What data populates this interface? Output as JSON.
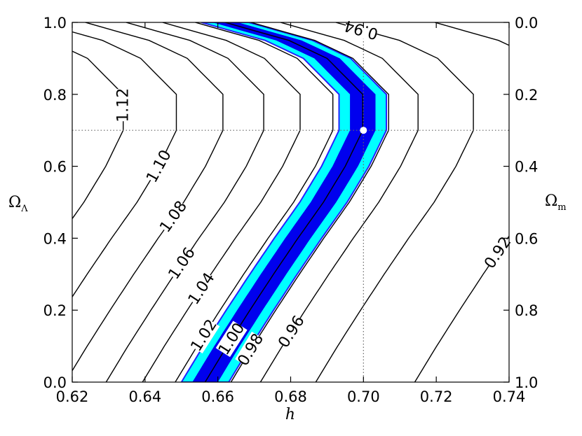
{
  "chart_data": {
    "type": "contour",
    "title": "",
    "xlabel": "h",
    "ylabel_left": "Ω",
    "ylabel_left_sub": "Λ",
    "ylabel_right": "Ω",
    "ylabel_right_sub": "m",
    "xlim": [
      0.62,
      0.74
    ],
    "ylim_left": [
      0.0,
      1.0
    ],
    "ylim_right": [
      1.0,
      0.0
    ],
    "x_ticks": [
      "0.62",
      "0.64",
      "0.66",
      "0.68",
      "0.70",
      "0.72",
      "0.74"
    ],
    "y_ticks_left": [
      "0.0",
      "0.2",
      "0.4",
      "0.6",
      "0.8",
      "1.0"
    ],
    "y_ticks_right": [
      "1.0",
      "0.8",
      "0.6",
      "0.4",
      "0.2",
      "0.0"
    ],
    "grid": false,
    "reference_point": {
      "h": 0.7,
      "omega_lambda": 0.7,
      "color": "#ffffff"
    },
    "reference_lines": {
      "h": 0.7,
      "omega_lambda": 0.7,
      "style": "dotted"
    },
    "confidence_bands": [
      {
        "level": "inner",
        "color": "#0000ee",
        "h_halfwidth": 0.0035
      },
      {
        "level": "outer",
        "color": "#00ffff",
        "h_halfwidth": 0.0065
      }
    ],
    "contour_levels": [
      "0.92",
      "0.94",
      "0.96",
      "0.98",
      "1.00",
      "1.02",
      "1.04",
      "1.06",
      "1.08",
      "1.10",
      "1.12"
    ],
    "contours": [
      {
        "label": "0.92",
        "offset": 0.0576
      },
      {
        "label": "0.94",
        "offset": 0.0304
      },
      {
        "label": "0.94",
        "offset": 0.0304
      },
      {
        "label": "0.96",
        "offset": 0.0152
      },
      {
        "label": "0.98",
        "offset": 0.0071
      },
      {
        "label": "1.00",
        "offset": 0.0
      },
      {
        "label": "1.02",
        "offset": -0.0082
      },
      {
        "label": "1.04",
        "offset": -0.0172
      },
      {
        "label": "1.06",
        "offset": -0.0272
      },
      {
        "label": "1.08",
        "offset": -0.0384
      },
      {
        "label": "1.10",
        "offset": -0.0512
      },
      {
        "label": "1.12",
        "offset": -0.0658
      },
      {
        "label": "",
        "offset": -0.0822
      }
    ],
    "ridge_curve_h_at_omega_lambda": {
      "omega_lambda": [
        0.0,
        0.1,
        0.2,
        0.3,
        0.4,
        0.5,
        0.6,
        0.7,
        0.8,
        0.9,
        0.95,
        1.0
      ],
      "h": [
        0.6565,
        0.6625,
        0.6688,
        0.6753,
        0.682,
        0.689,
        0.695,
        0.6998,
        0.6998,
        0.69,
        0.6795,
        0.662
      ]
    }
  }
}
